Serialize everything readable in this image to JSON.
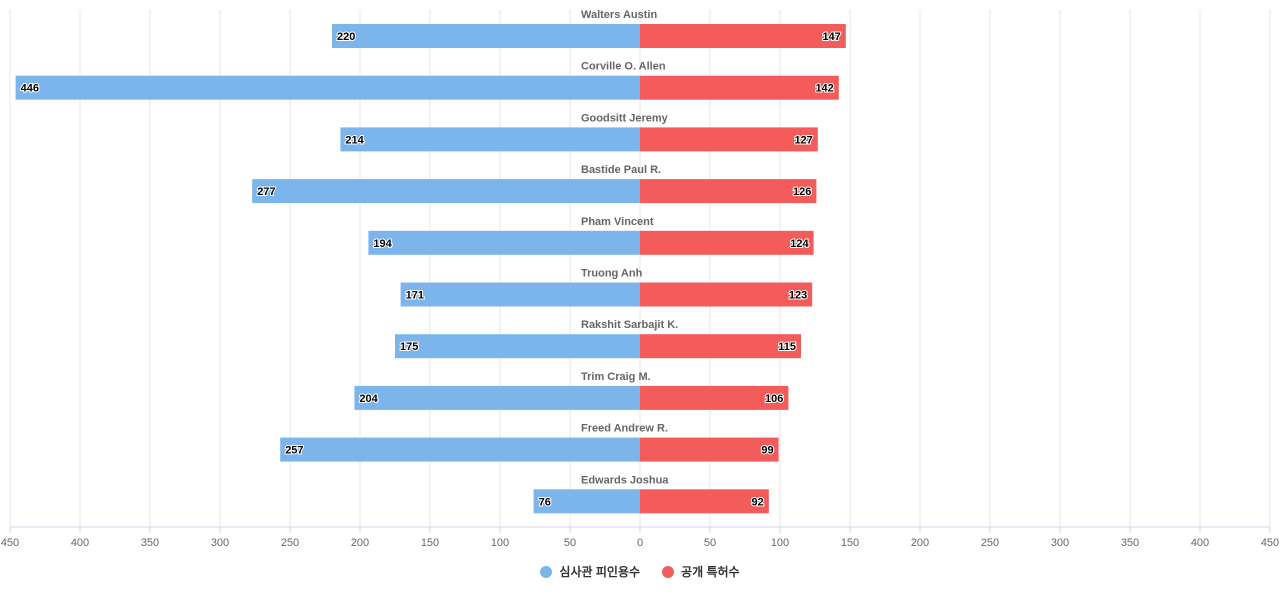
{
  "chart_data": {
    "type": "bar",
    "orientation": "horizontal-butterfly",
    "categories": [
      "Walters Austin",
      "Corville O. Allen",
      "Goodsitt Jeremy",
      "Bastide Paul R.",
      "Pham Vincent",
      "Truong Anh",
      "Rakshit Sarbajit K.",
      "Trim Craig M.",
      "Freed Andrew R.",
      "Edwards Joshua"
    ],
    "series": [
      {
        "name": "심사관 피인용수",
        "color": "#7cb5ec",
        "side": "left",
        "values": [
          220,
          446,
          214,
          277,
          194,
          171,
          175,
          204,
          257,
          76
        ]
      },
      {
        "name": "공개 특허수",
        "color": "#f45b5b",
        "side": "right",
        "values": [
          147,
          142,
          127,
          126,
          124,
          123,
          115,
          106,
          99,
          92
        ]
      }
    ],
    "xlim": [
      -450,
      450
    ],
    "x_ticks": [
      "450",
      "400",
      "350",
      "300",
      "250",
      "200",
      "150",
      "100",
      "50",
      "0",
      "50",
      "100",
      "150",
      "200",
      "250",
      "300",
      "350",
      "400",
      "450"
    ],
    "grid": true,
    "legend_position": "bottom-center",
    "data_labels": true
  }
}
